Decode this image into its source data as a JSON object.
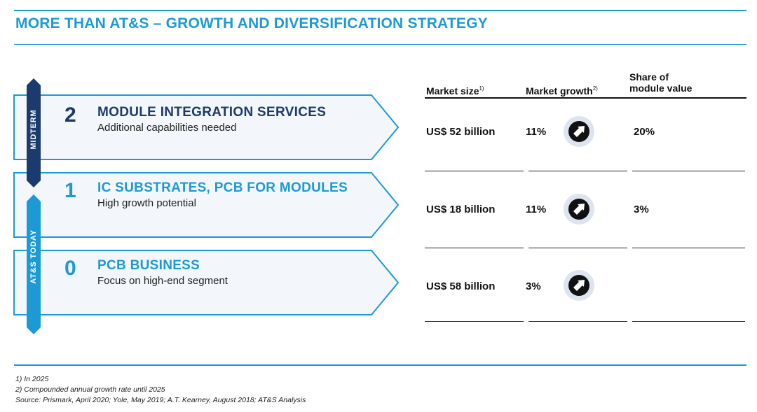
{
  "slide": {
    "title": "MORE THAN AT&S – GROWTH AND DIVERSIFICATION STRATEGY"
  },
  "timeline": {
    "midterm_label": "MIDTERM",
    "today_label": "AT&S TODAY"
  },
  "segments": [
    {
      "number": "2",
      "title": "MODULE INTEGRATION SERVICES",
      "subtitle": "Additional capabilities needed"
    },
    {
      "number": "1",
      "title": "IC SUBSTRATES, PCB FOR MODULES",
      "subtitle": "High growth potential"
    },
    {
      "number": "0",
      "title": "PCB BUSINESS",
      "subtitle": "Focus on high-end segment"
    }
  ],
  "table": {
    "headers": {
      "market_size": "Market size",
      "market_size_note": "1)",
      "market_growth": "Market growth",
      "market_growth_note": "2)",
      "share_line1": "Share of",
      "share_line2": "module value"
    },
    "rows": [
      {
        "market_size": "US$ 52 billion",
        "market_growth": "11%",
        "growth_icon": "arrow-up-right-icon",
        "share": "20%"
      },
      {
        "market_size": "US$ 18 billion",
        "market_growth": "11%",
        "growth_icon": "arrow-up-right-icon",
        "share": "3%"
      },
      {
        "market_size": "US$ 58 billion",
        "market_growth": "3%",
        "growth_icon": "arrow-up-right-icon",
        "share": ""
      }
    ]
  },
  "footnotes": [
    "1) In 2025",
    "2) Compounded annual growth rate until 2025",
    "Source: Prismark, April 2020; Yole, May 2019; A.T. Kearney, August 2018; AT&S Analysis"
  ],
  "colors": {
    "accent": "#1c9ad6",
    "navy": "#1b3b6f",
    "chevron_fill": "#f3f6fa",
    "icon_halo": "#dde4ef"
  }
}
